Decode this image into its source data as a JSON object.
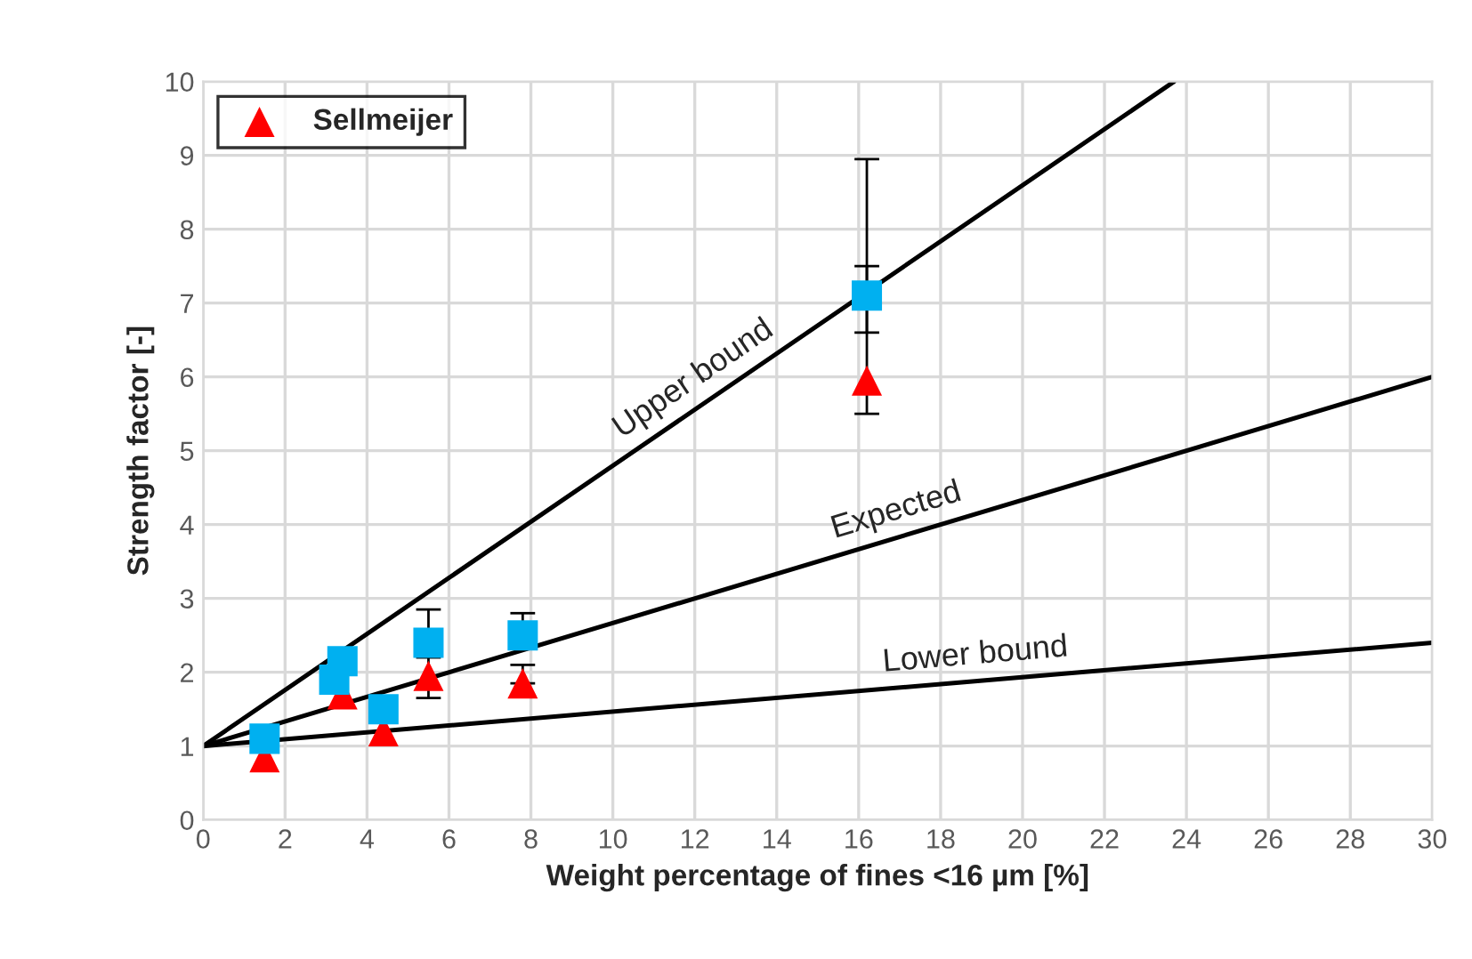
{
  "chart_data": {
    "type": "scatter",
    "xlabel": "Weight percentage of fines <16 µm [%]",
    "ylabel": "Strength factor [-]",
    "xlim": [
      0,
      30
    ],
    "ylim": [
      0,
      10
    ],
    "xticks": [
      0,
      2,
      4,
      6,
      8,
      10,
      12,
      14,
      16,
      18,
      20,
      22,
      24,
      26,
      28,
      30
    ],
    "yticks": [
      0,
      1,
      2,
      3,
      4,
      5,
      6,
      7,
      8,
      9,
      10
    ],
    "grid": true,
    "legend": "top left",
    "series": [
      {
        "type": "line",
        "color": "#000000",
        "x": [
          0,
          23.7
        ],
        "values": [
          1,
          10
        ],
        "marker": "none"
      },
      {
        "type": "line",
        "color": "#000000",
        "x": [
          0,
          30
        ],
        "values": [
          1,
          6
        ],
        "marker": "none"
      },
      {
        "type": "line",
        "color": "#000000",
        "x": [
          0,
          30
        ],
        "values": [
          1,
          2.4
        ],
        "marker": "none"
      },
      {
        "name": "Sellmeijer",
        "color": "#ff0000",
        "marker": "triangle",
        "x": [
          1.5,
          3.2,
          3.4,
          4.4,
          5.5,
          7.8,
          16.2
        ],
        "values": [
          0.85,
          null,
          1.7,
          1.2,
          1.95,
          1.85,
          5.95
        ],
        "errors": [
          null,
          null,
          null,
          null,
          [
            1.65,
            2.2
          ],
          [
            1.85,
            2.1
          ],
          [
            5.5,
            7.5
          ]
        ]
      },
      {
        "color": "#00b0f0",
        "marker": "square",
        "x": [
          1.5,
          3.2,
          3.4,
          4.4,
          5.5,
          7.8,
          16.2
        ],
        "values": [
          1.1,
          1.9,
          2.15,
          1.5,
          2.4,
          2.5,
          7.1
        ],
        "errors": [
          null,
          null,
          null,
          null,
          [
            2.4,
            2.85
          ],
          [
            2.5,
            2.8
          ],
          [
            6.6,
            8.95
          ]
        ]
      }
    ],
    "annotations": [
      "Upper bound",
      "Expected",
      "Lower bound"
    ]
  }
}
